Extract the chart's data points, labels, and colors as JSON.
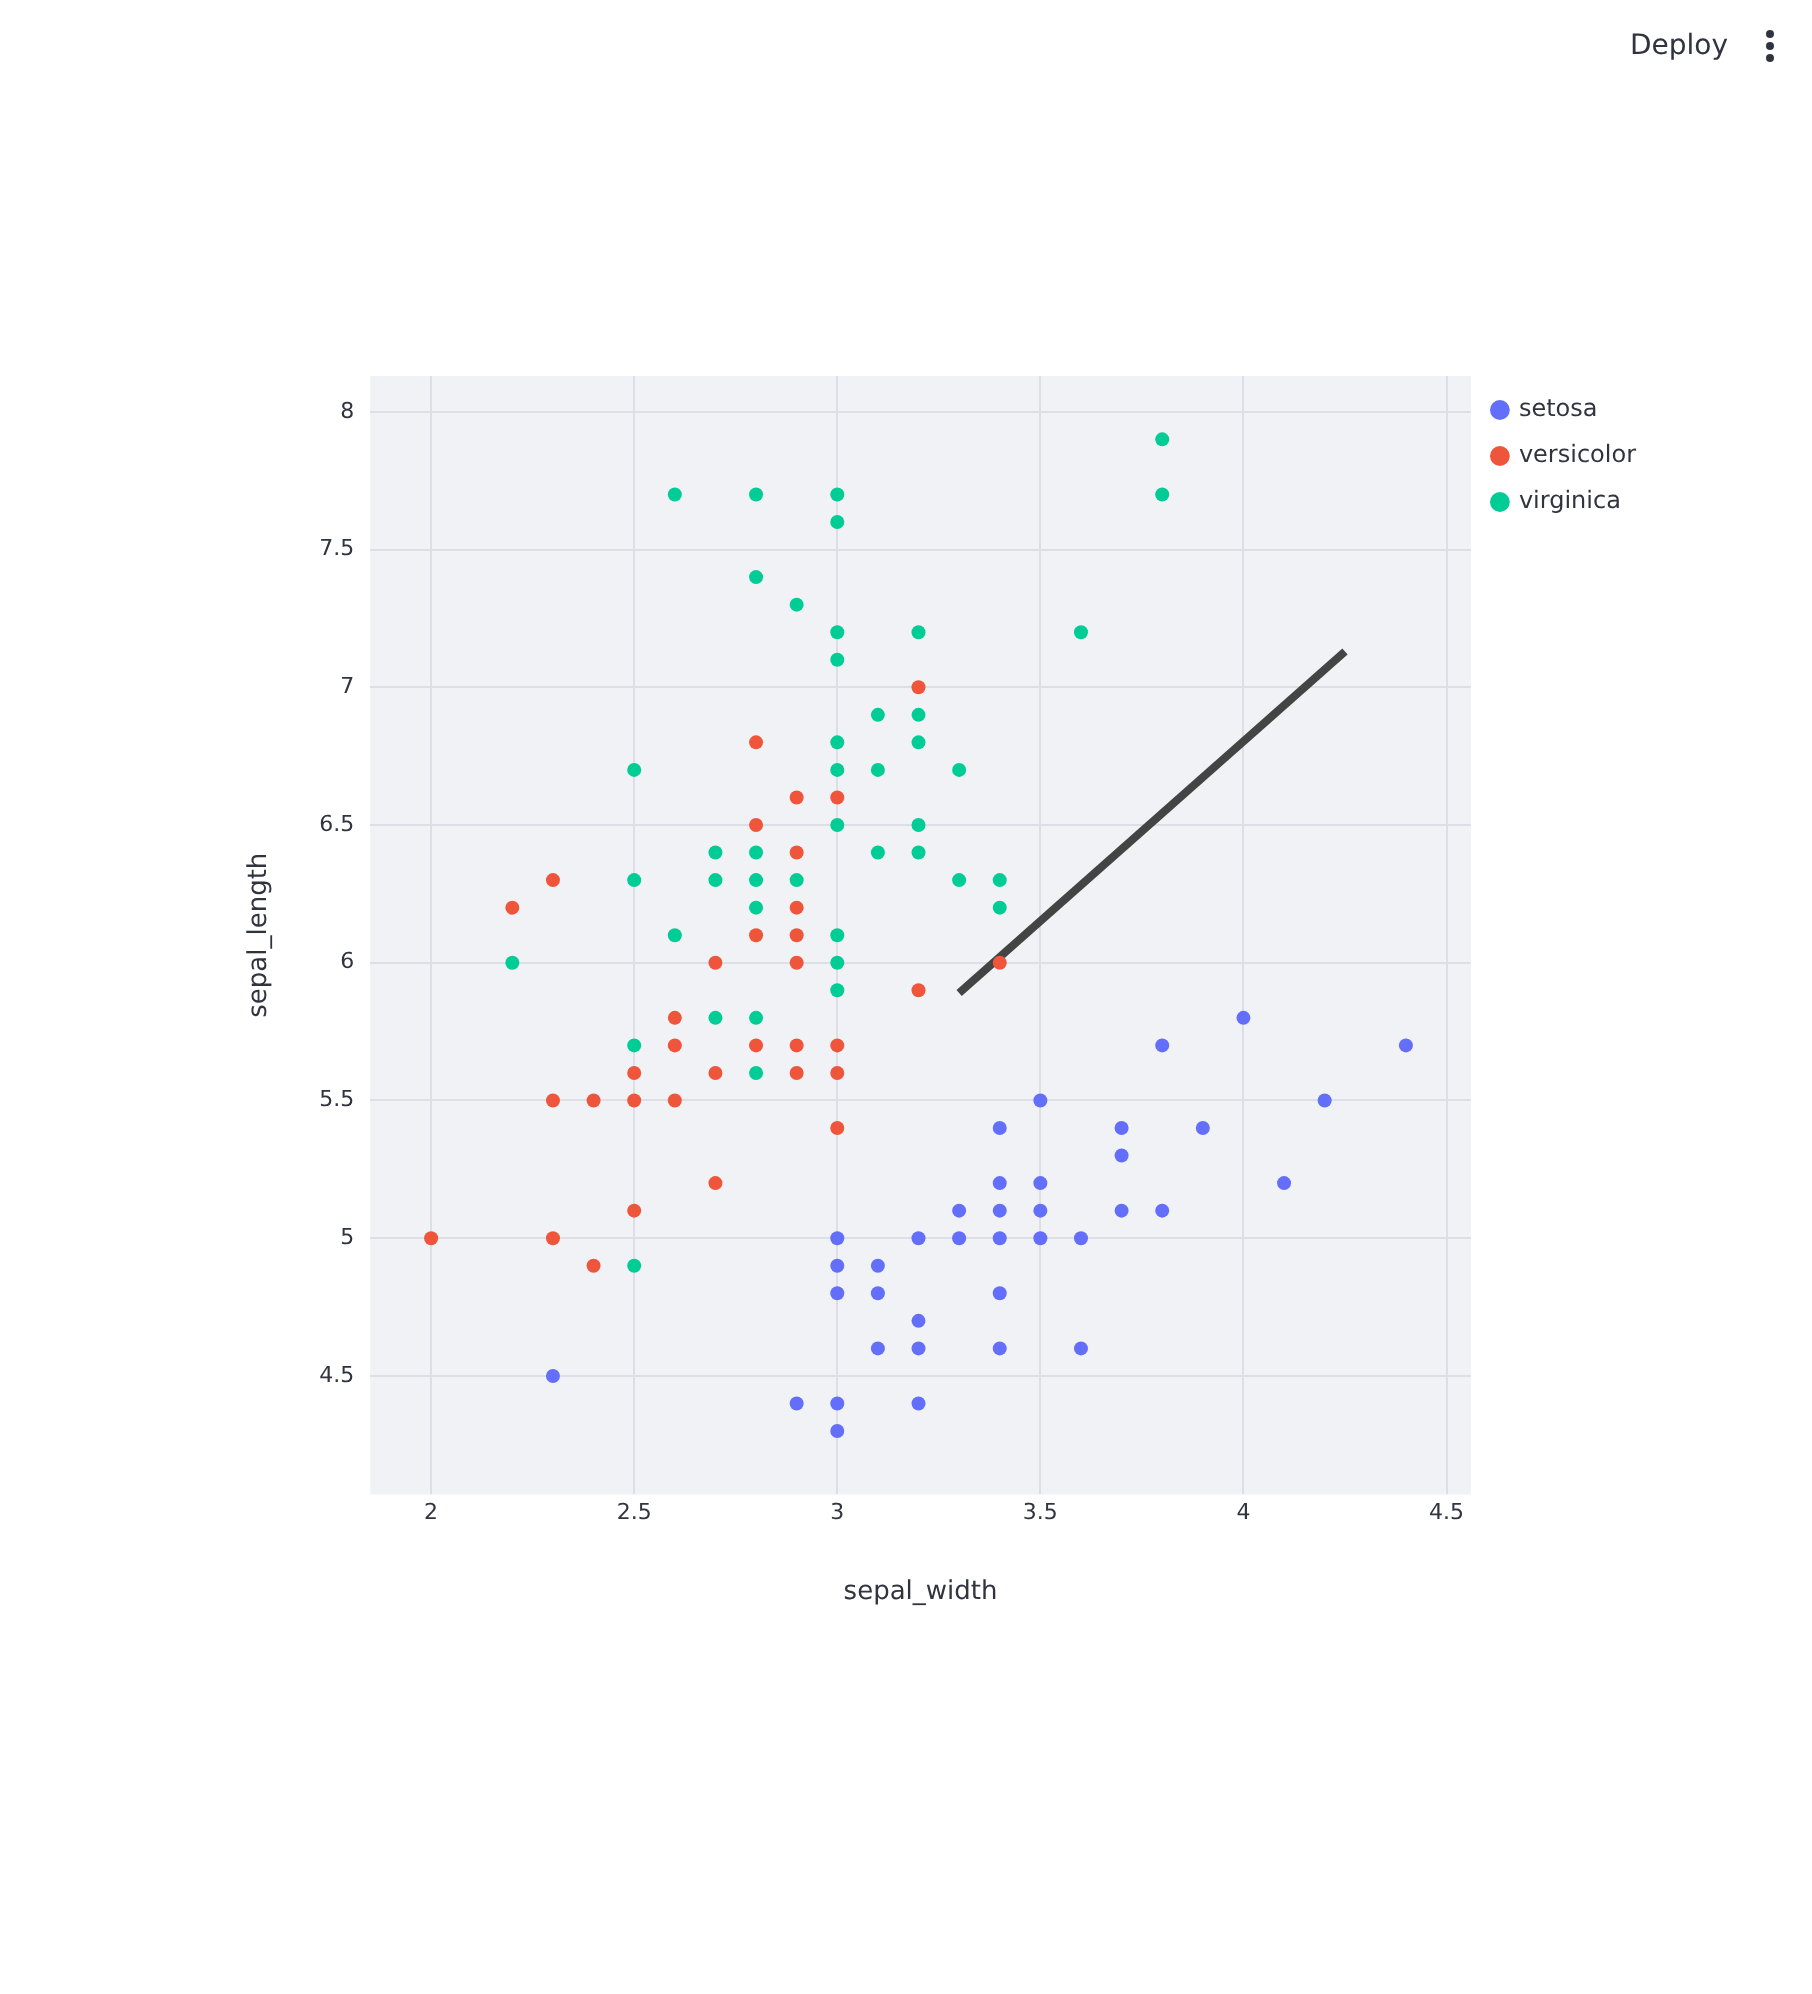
{
  "chart_data": {
    "type": "scatter",
    "xlabel": "sepal_width",
    "ylabel": "sepal_length",
    "xlim": [
      1.85,
      4.56
    ],
    "ylim": [
      4.07,
      8.13
    ],
    "xticks": [
      2,
      2.5,
      3,
      3.5,
      4,
      4.5
    ],
    "yticks": [
      4.5,
      5,
      5.5,
      6,
      6.5,
      7,
      7.5,
      8
    ],
    "grid": true,
    "legend": "top right",
    "marker": "circle",
    "annotations": [
      "Deploy"
    ],
    "series": [
      {
        "name": "setosa",
        "color": "#636efa",
        "x": [
          3.5,
          3.0,
          3.2,
          3.1,
          3.6,
          3.9,
          3.4,
          3.4,
          2.9,
          3.1,
          3.7,
          3.4,
          3.0,
          3.0,
          4.0,
          4.4,
          3.8,
          3.8,
          3.4,
          3.7,
          3.6,
          3.3,
          3.0,
          3.5,
          3.4,
          3.1,
          4.1,
          4.2,
          3.2,
          3.5,
          3.0,
          3.4,
          3.5,
          2.3,
          3.2,
          3.2,
          3.7,
          3.3
        ],
        "values": [
          5.1,
          4.9,
          4.7,
          4.6,
          5.0,
          5.4,
          4.6,
          5.0,
          4.4,
          4.9,
          5.4,
          4.8,
          4.8,
          4.3,
          5.8,
          5.7,
          5.7,
          5.1,
          5.4,
          5.1,
          4.6,
          5.1,
          5.0,
          5.2,
          5.2,
          4.8,
          5.2,
          5.5,
          5.0,
          5.5,
          4.4,
          5.1,
          5.0,
          4.5,
          4.4,
          4.6,
          5.3,
          5.0
        ]
      },
      {
        "name": "versicolor",
        "color": "#ef553b",
        "x": [
          3.2,
          2.3,
          2.8,
          2.8,
          2.4,
          2.9,
          2.7,
          2.0,
          2.9,
          2.9,
          3.0,
          2.2,
          2.5,
          3.2,
          2.8,
          2.9,
          3.0,
          2.8,
          2.9,
          2.6,
          2.4,
          2.7,
          3.0,
          3.4,
          2.3,
          2.5,
          2.6,
          2.6,
          2.3,
          2.7,
          3.0,
          2.9,
          2.9,
          2.5
        ],
        "values": [
          7.0,
          5.5,
          6.5,
          5.7,
          4.9,
          6.6,
          5.2,
          5.0,
          6.1,
          5.6,
          5.6,
          6.2,
          5.6,
          5.9,
          6.1,
          6.4,
          6.6,
          6.8,
          6.0,
          5.7,
          5.5,
          6.0,
          5.4,
          6.0,
          6.3,
          5.5,
          5.5,
          5.8,
          5.0,
          5.6,
          5.7,
          5.7,
          6.2,
          5.1
        ]
      },
      {
        "name": "virginica",
        "color": "#00cc96",
        "x": [
          3.3,
          2.7,
          3.0,
          2.9,
          3.0,
          3.0,
          2.5,
          2.9,
          2.5,
          3.6,
          3.2,
          2.7,
          3.0,
          2.5,
          2.8,
          3.2,
          3.8,
          2.6,
          2.2,
          3.2,
          2.8,
          2.8,
          2.7,
          3.3,
          3.2,
          2.8,
          3.0,
          2.8,
          3.0,
          2.8,
          3.8,
          2.8,
          2.6,
          3.0,
          3.4,
          3.1,
          3.0,
          3.1,
          3.1,
          3.2,
          2.5,
          3.4,
          3.0,
          3.0
        ],
        "values": [
          6.3,
          5.8,
          7.1,
          6.3,
          6.5,
          7.6,
          4.9,
          7.3,
          6.7,
          7.2,
          6.5,
          6.4,
          6.8,
          5.7,
          5.8,
          6.4,
          7.7,
          7.7,
          6.0,
          6.9,
          5.6,
          7.7,
          6.3,
          6.7,
          7.2,
          6.2,
          6.1,
          6.4,
          7.2,
          7.4,
          7.9,
          6.3,
          6.1,
          7.7,
          6.3,
          6.4,
          6.0,
          6.9,
          6.7,
          6.8,
          6.3,
          6.2,
          5.9,
          6.7
        ]
      },
      {
        "type": "line",
        "marker": "none",
        "color": "#444444",
        "x": [
          3.3,
          4.25
        ],
        "values": [
          5.89,
          7.13
        ]
      }
    ]
  }
}
